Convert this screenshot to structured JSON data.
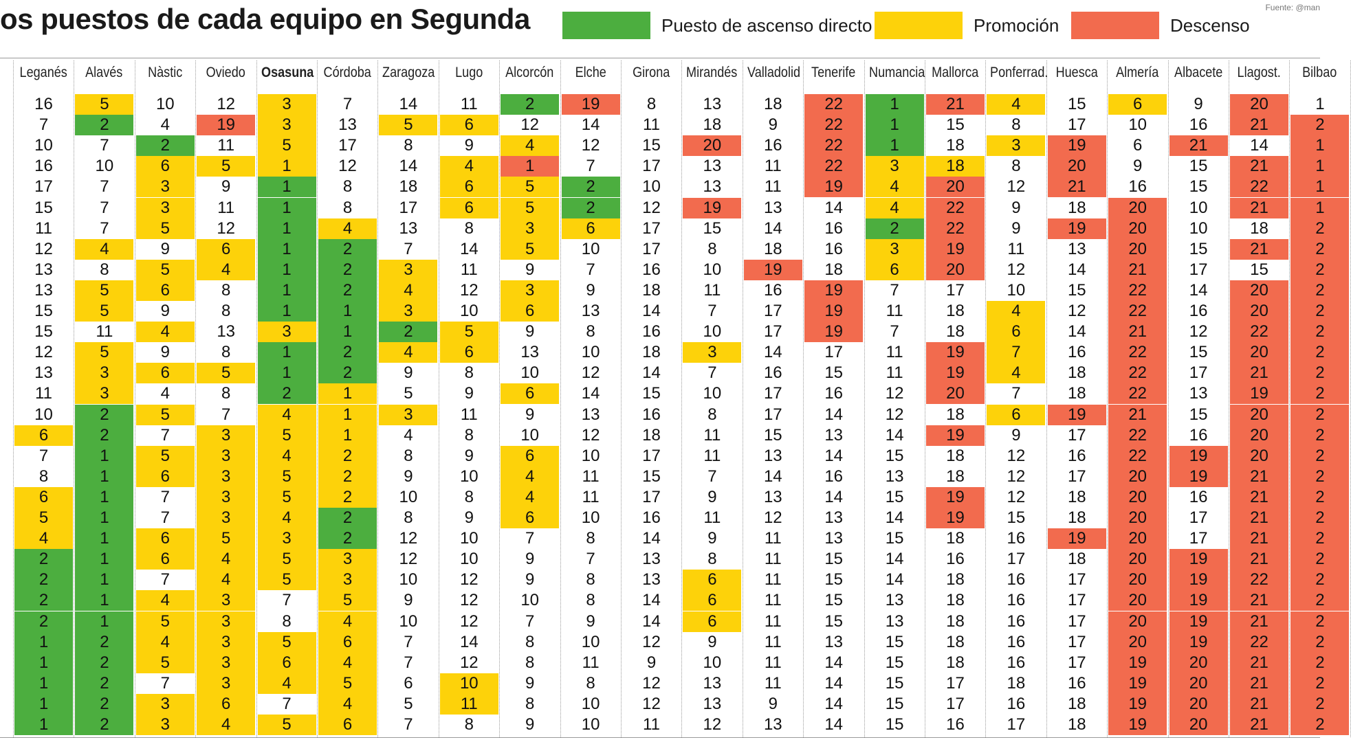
{
  "title": "os puestos de cada equipo en Segunda",
  "source": "Fuente: @man",
  "legend": [
    {
      "label": "Puesto de ascenso directo",
      "color": "#4cae3f"
    },
    {
      "label": "Promoción",
      "color": "#fdd20a"
    },
    {
      "label": "Descenso",
      "color": "#f26b4e"
    }
  ],
  "colors": {
    "direct": "#4cae3f",
    "playoff": "#fdd20a",
    "relegation": "#f26b4e",
    "none": "#ffffff"
  },
  "chart_data": {
    "type": "table",
    "title": "os puestos de cada equipo en Segunda",
    "columns": [
      "Leganés",
      "Alavés",
      "Nàstic",
      "Oviedo",
      "Osasuna",
      "Córdoba",
      "Zaragoza",
      "Lugo",
      "Alcorcón",
      "Elche",
      "Girona",
      "Mirandés",
      "Valladolid",
      "Tenerife",
      "Numancia",
      "Mallorca",
      "Ponferrad.",
      "Huesca",
      "Almería",
      "Albacete",
      "Llagost.",
      "Bilbao"
    ],
    "highlight_column": "Osasuna",
    "row_labels": [
      "",
      "",
      "",
      "",
      "",
      "",
      "",
      "",
      "",
      "",
      "",
      "",
      "",
      "",
      "",
      "",
      "",
      "",
      "",
      "",
      "",
      "",
      "",
      "",
      "",
      "",
      "",
      "",
      "",
      "",
      "",
      ""
    ],
    "rows": [
      [
        16,
        5,
        10,
        12,
        3,
        7,
        14,
        11,
        2,
        19,
        8,
        13,
        18,
        22,
        1,
        21,
        4,
        15,
        6,
        9,
        20,
        1
      ],
      [
        7,
        2,
        4,
        19,
        3,
        13,
        5,
        6,
        12,
        14,
        11,
        18,
        9,
        22,
        1,
        15,
        8,
        17,
        10,
        16,
        21,
        2
      ],
      [
        10,
        7,
        2,
        11,
        5,
        17,
        8,
        9,
        4,
        12,
        15,
        20,
        16,
        22,
        1,
        18,
        3,
        19,
        6,
        21,
        14,
        1
      ],
      [
        16,
        10,
        6,
        5,
        1,
        12,
        14,
        4,
        1,
        7,
        17,
        13,
        11,
        22,
        3,
        18,
        8,
        20,
        9,
        15,
        21,
        1
      ],
      [
        17,
        7,
        3,
        9,
        1,
        8,
        18,
        6,
        5,
        2,
        10,
        13,
        11,
        19,
        4,
        20,
        12,
        21,
        16,
        15,
        22,
        1
      ],
      [
        15,
        7,
        3,
        11,
        1,
        8,
        17,
        6,
        5,
        2,
        12,
        19,
        13,
        14,
        4,
        22,
        9,
        18,
        20,
        10,
        21,
        1
      ],
      [
        11,
        7,
        5,
        12,
        1,
        4,
        13,
        8,
        3,
        6,
        17,
        15,
        14,
        16,
        2,
        22,
        9,
        19,
        20,
        10,
        18,
        2
      ],
      [
        12,
        4,
        9,
        6,
        1,
        2,
        7,
        14,
        5,
        10,
        17,
        8,
        18,
        16,
        3,
        19,
        11,
        13,
        20,
        15,
        21,
        2
      ],
      [
        13,
        8,
        5,
        4,
        1,
        2,
        3,
        11,
        9,
        7,
        16,
        10,
        19,
        18,
        6,
        20,
        12,
        14,
        21,
        17,
        15,
        2
      ],
      [
        13,
        5,
        6,
        8,
        1,
        2,
        4,
        12,
        3,
        9,
        18,
        11,
        16,
        19,
        7,
        17,
        10,
        15,
        22,
        14,
        20,
        2
      ],
      [
        15,
        5,
        9,
        8,
        1,
        1,
        3,
        10,
        6,
        13,
        14,
        7,
        17,
        19,
        11,
        18,
        4,
        12,
        22,
        16,
        20,
        2
      ],
      [
        15,
        11,
        4,
        13,
        3,
        1,
        2,
        5,
        9,
        8,
        16,
        10,
        17,
        19,
        7,
        18,
        6,
        14,
        21,
        12,
        22,
        2
      ],
      [
        12,
        5,
        9,
        8,
        1,
        2,
        4,
        6,
        13,
        10,
        18,
        3,
        14,
        17,
        11,
        19,
        7,
        16,
        22,
        15,
        20,
        2
      ],
      [
        13,
        3,
        6,
        5,
        1,
        2,
        9,
        8,
        10,
        12,
        14,
        7,
        16,
        15,
        11,
        19,
        4,
        18,
        22,
        17,
        21,
        2
      ],
      [
        11,
        3,
        4,
        8,
        2,
        1,
        5,
        9,
        6,
        14,
        15,
        10,
        17,
        16,
        12,
        20,
        7,
        18,
        22,
        13,
        19,
        2
      ],
      [
        10,
        2,
        5,
        7,
        4,
        1,
        3,
        11,
        9,
        13,
        16,
        8,
        17,
        14,
        12,
        18,
        6,
        19,
        21,
        15,
        20,
        2
      ],
      [
        6,
        2,
        7,
        3,
        5,
        1,
        4,
        8,
        10,
        12,
        18,
        11,
        15,
        13,
        14,
        19,
        9,
        17,
        22,
        16,
        20,
        2
      ],
      [
        7,
        1,
        5,
        3,
        4,
        2,
        8,
        9,
        6,
        10,
        17,
        11,
        13,
        14,
        15,
        18,
        12,
        16,
        22,
        19,
        20,
        2
      ],
      [
        8,
        1,
        6,
        3,
        5,
        2,
        9,
        10,
        4,
        11,
        15,
        7,
        14,
        16,
        13,
        18,
        12,
        17,
        20,
        19,
        21,
        2
      ],
      [
        6,
        1,
        7,
        3,
        5,
        2,
        10,
        8,
        4,
        11,
        17,
        9,
        13,
        14,
        15,
        19,
        12,
        18,
        20,
        16,
        21,
        2
      ],
      [
        5,
        1,
        7,
        3,
        4,
        2,
        8,
        9,
        6,
        10,
        16,
        11,
        12,
        13,
        14,
        19,
        15,
        18,
        20,
        17,
        21,
        2
      ],
      [
        4,
        1,
        6,
        5,
        3,
        2,
        12,
        10,
        7,
        8,
        14,
        9,
        11,
        13,
        15,
        18,
        16,
        19,
        20,
        17,
        21,
        2
      ],
      [
        2,
        1,
        6,
        4,
        5,
        3,
        12,
        10,
        9,
        7,
        13,
        8,
        11,
        15,
        14,
        16,
        17,
        18,
        20,
        19,
        21,
        2
      ],
      [
        2,
        1,
        7,
        4,
        5,
        3,
        10,
        12,
        9,
        8,
        13,
        6,
        11,
        15,
        14,
        18,
        16,
        17,
        20,
        19,
        22,
        2
      ],
      [
        2,
        1,
        4,
        3,
        7,
        5,
        9,
        12,
        10,
        8,
        14,
        6,
        11,
        15,
        13,
        18,
        16,
        17,
        20,
        19,
        21,
        2
      ],
      [
        2,
        1,
        5,
        3,
        8,
        4,
        10,
        12,
        7,
        9,
        14,
        6,
        11,
        15,
        13,
        18,
        16,
        17,
        20,
        19,
        21,
        2
      ],
      [
        1,
        2,
        4,
        3,
        5,
        6,
        7,
        14,
        8,
        10,
        12,
        9,
        11,
        13,
        15,
        18,
        16,
        17,
        20,
        19,
        22,
        2
      ],
      [
        1,
        2,
        5,
        3,
        6,
        4,
        7,
        12,
        8,
        11,
        9,
        10,
        11,
        14,
        15,
        18,
        16,
        17,
        19,
        20,
        21,
        2
      ],
      [
        1,
        2,
        7,
        3,
        4,
        5,
        6,
        10,
        9,
        8,
        12,
        13,
        11,
        14,
        15,
        17,
        18,
        16,
        19,
        20,
        21,
        2
      ],
      [
        1,
        2,
        3,
        6,
        7,
        4,
        5,
        11,
        8,
        10,
        12,
        13,
        9,
        14,
        15,
        17,
        16,
        18,
        19,
        20,
        21,
        2
      ],
      [
        1,
        2,
        3,
        4,
        5,
        6,
        7,
        8,
        9,
        10,
        11,
        12,
        13,
        14,
        15,
        16,
        17,
        18,
        19,
        20,
        21,
        2
      ]
    ],
    "styles": [
      "wywwywwwgrwwwrgrywywrw",
      "wgwrywyywwwwwrgwwwwwrr",
      "wwgwywwwywwrwrgwyrwrwr",
      "wwyyywwyrwwwwryowrwwrr",
      "wwywgwwyygwwwryrwrwwrr",
      "wwywgwwyygwrwwyrwwrwrr",
      "wwywgywwyywwwwgrwrrwwr",
      "wywyggwwywwwwwyrwwrwrr",
      "wwyyggywwwwwrwyrwwrwwr",
      "wyywggywywwwwrwwwwrwrr",
      "wywwggywywwwwrwwywrwrr",
      "wwywyggywwwwwrwwywrwrr",
      "wywwggyywwwywwwrywrwrr",
      "wyyyggwwwwwwwwwrywrwrr",
      "wywwgywwywwwwwwrwwrwrr",
      "wgywyyywwwwwwwwwyrrwrr",
      "ygwyyywwwwwwwwwrwwrwrr",
      "wgyyyywwywwwwwwwwwrrrr",
      "wgyyyywwywwwwwwwwwrrrr",
      "ygwyyywwywwwwwwrwwrwrr",
      "ygwyygwwywwwwwwrwwrwrr",
      "ygyyygwwwwwwwwwwwrrwrr",
      "ggyyyywwwwwwwwwwwwrrrr",
      "ggwyyywwwwwywwwwwwrrrr",
      "ggyywywwwwwywwwwwwrrrr",
      "ggyywywwwwwywwwwwwrrrr",
      "ggyyyywwwwwwwwwwwwrrrr",
      "ggyyyywwwwwwwwwwwwrrrr",
      "ggwyyywywwwwwwwwwwrrrr",
      "ggyywywywwwwwwwwwwrrrr",
      "ggyyyywwwwwwwwwwwwrrrr"
    ]
  }
}
